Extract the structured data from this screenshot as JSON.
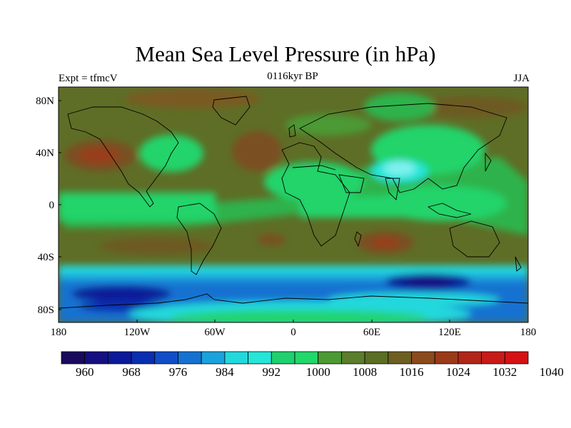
{
  "title": "Mean Sea Level Pressure (in hPa)",
  "left_string": "Expt = tfmcV",
  "center_string": "0116kyr BP",
  "right_string": "JJA",
  "map": {
    "lat_ticks": [
      "80N",
      "40N",
      "0",
      "40S",
      "80S"
    ],
    "lon_ticks": [
      "180",
      "120W",
      "60W",
      "0",
      "60E",
      "120E",
      "180"
    ]
  },
  "colorbar": {
    "labels": [
      "960",
      "968",
      "976",
      "984",
      "992",
      "1000",
      "1008",
      "1016",
      "1024",
      "1032",
      "1040"
    ],
    "colors": [
      "#1a0a5e",
      "#160f80",
      "#0c1a99",
      "#0a2eb0",
      "#0f4ec8",
      "#1672d0",
      "#1aa2dc",
      "#23d8dc",
      "#25e6d8",
      "#1fd06e",
      "#22d86a",
      "#4b9a34",
      "#5b7d2c",
      "#5b6e24",
      "#6d5e22",
      "#8a4a1c",
      "#9a3a18",
      "#b2261a",
      "#c81a18",
      "#d41214"
    ]
  }
}
